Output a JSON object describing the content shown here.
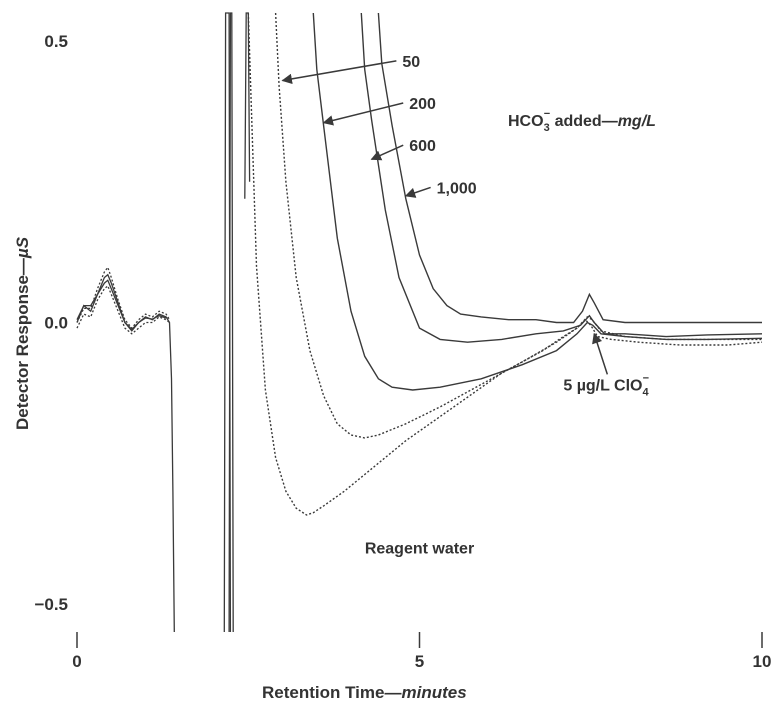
{
  "chart_data": {
    "type": "line",
    "title": "",
    "xlabel_prefix": "Retention Time—",
    "xlabel_unit": "minutes",
    "ylabel_prefix": "Detector Response—",
    "ylabel_unit": "µS",
    "xlim": [
      0,
      10
    ],
    "ylim": [
      -0.55,
      0.55
    ],
    "xticks": [
      {
        "value": 0,
        "label": "0"
      },
      {
        "value": 5,
        "label": "5"
      },
      {
        "value": 10,
        "label": "10"
      }
    ],
    "yticks": [
      {
        "value": 0.5,
        "label": "0.5"
      },
      {
        "value": 0.0,
        "label": "0.0"
      },
      {
        "value": -0.5,
        "label": "−0.5"
      }
    ],
    "grid": false,
    "line_color": "#3a3a3a",
    "series": [
      {
        "name": "Reagent water",
        "dash": "2,2",
        "x": [
          2.5,
          2.62,
          2.75,
          2.9,
          3.05,
          3.2,
          3.35,
          3.45,
          3.6,
          3.9,
          4.3,
          4.8,
          5.5,
          6.2,
          6.8,
          7.1,
          7.3,
          7.42,
          7.5,
          7.6,
          7.8,
          8.2,
          8.8,
          9.5,
          10.0
        ],
        "y": [
          0.55,
          0.1,
          -0.12,
          -0.24,
          -0.3,
          -0.33,
          -0.342,
          -0.338,
          -0.326,
          -0.3,
          -0.26,
          -0.21,
          -0.15,
          -0.09,
          -0.05,
          -0.025,
          -0.01,
          0.005,
          -0.005,
          -0.025,
          -0.03,
          -0.035,
          -0.04,
          -0.04,
          -0.035
        ]
      },
      {
        "name": "50",
        "dash": "2,2",
        "x": [
          2.9,
          2.95,
          3.05,
          3.2,
          3.4,
          3.6,
          3.8,
          4.0,
          4.2,
          4.4,
          4.8,
          5.3,
          5.9,
          6.5,
          7.0,
          7.3,
          7.45,
          7.52,
          7.65,
          8.0,
          8.6,
          9.2,
          10.0
        ],
        "y": [
          0.55,
          0.42,
          0.25,
          0.08,
          -0.05,
          -0.13,
          -0.18,
          -0.2,
          -0.205,
          -0.2,
          -0.18,
          -0.15,
          -0.11,
          -0.07,
          -0.035,
          -0.01,
          0.01,
          0.005,
          -0.015,
          -0.025,
          -0.03,
          -0.03,
          -0.03
        ]
      },
      {
        "name": "200",
        "dash": "",
        "x": [
          3.45,
          3.5,
          3.6,
          3.8,
          4.0,
          4.2,
          4.4,
          4.6,
          4.9,
          5.3,
          5.9,
          6.5,
          7.0,
          7.3,
          7.45,
          7.53,
          7.65,
          8.0,
          8.6,
          9.2,
          10.0
        ],
        "y": [
          0.55,
          0.45,
          0.35,
          0.15,
          0.02,
          -0.06,
          -0.1,
          -0.115,
          -0.12,
          -0.115,
          -0.1,
          -0.075,
          -0.05,
          -0.02,
          0.0,
          -0.005,
          -0.02,
          -0.025,
          -0.03,
          -0.03,
          -0.028
        ]
      },
      {
        "name": "600",
        "dash": "",
        "x": [
          4.15,
          4.2,
          4.3,
          4.5,
          4.7,
          5.0,
          5.3,
          5.7,
          6.2,
          6.7,
          7.1,
          7.35,
          7.48,
          7.55,
          7.7,
          8.0,
          8.6,
          9.2,
          10.0
        ],
        "y": [
          0.55,
          0.45,
          0.36,
          0.2,
          0.08,
          -0.01,
          -0.03,
          -0.035,
          -0.03,
          -0.02,
          -0.015,
          -0.005,
          0.012,
          0.0,
          -0.02,
          -0.02,
          -0.025,
          -0.022,
          -0.02
        ]
      },
      {
        "name": "1,000",
        "dash": "",
        "x": [
          4.4,
          4.45,
          4.6,
          4.8,
          5.0,
          5.2,
          5.4,
          5.6,
          5.9,
          6.3,
          6.7,
          7.0,
          7.25,
          7.38,
          7.48,
          7.55,
          7.68,
          8.0,
          8.6,
          9.3,
          10.0
        ],
        "y": [
          0.55,
          0.46,
          0.35,
          0.22,
          0.12,
          0.06,
          0.03,
          0.015,
          0.01,
          0.005,
          0.005,
          0.0,
          0.0,
          0.02,
          0.05,
          0.035,
          0.005,
          0.0,
          0.0,
          0.0,
          0.0
        ]
      }
    ],
    "early_traces": [
      {
        "dash": "",
        "x": [
          0,
          0.1,
          0.2,
          0.3,
          0.4,
          0.45,
          0.5,
          0.6,
          0.7,
          0.8,
          0.9,
          1.0,
          1.1,
          1.2,
          1.3,
          1.35,
          1.38,
          1.4,
          1.42
        ],
        "y": [
          0.0,
          0.03,
          0.02,
          0.05,
          0.07,
          0.075,
          0.06,
          0.03,
          0.0,
          -0.015,
          0.0,
          0.01,
          0.005,
          0.015,
          0.01,
          0.0,
          -0.1,
          -0.3,
          -0.55
        ]
      },
      {
        "dash": "2,2",
        "x": [
          0,
          0.1,
          0.2,
          0.3,
          0.4,
          0.45,
          0.5,
          0.6,
          0.7,
          0.8,
          0.9,
          1.0,
          1.1,
          1.2,
          1.3,
          1.35
        ],
        "y": [
          0.0,
          0.025,
          0.025,
          0.06,
          0.09,
          0.098,
          0.08,
          0.04,
          0.005,
          -0.01,
          0.005,
          0.015,
          0.01,
          0.02,
          0.015,
          0.005
        ]
      },
      {
        "dash": "2,2",
        "x": [
          0,
          0.1,
          0.2,
          0.3,
          0.4,
          0.45,
          0.5,
          0.6,
          0.7,
          0.8,
          0.9,
          1.0,
          1.1,
          1.2,
          1.3,
          1.35
        ],
        "y": [
          -0.01,
          0.015,
          0.01,
          0.04,
          0.06,
          0.065,
          0.05,
          0.02,
          -0.01,
          -0.02,
          -0.01,
          0.0,
          0.0,
          0.01,
          0.005,
          0.0
        ]
      },
      {
        "dash": "",
        "x": [
          0,
          0.1,
          0.2,
          0.3,
          0.4,
          0.45,
          0.5,
          0.6,
          0.7,
          0.8,
          0.9,
          1.0,
          1.1,
          1.2,
          1.3
        ],
        "y": [
          0.005,
          0.03,
          0.03,
          0.05,
          0.08,
          0.085,
          0.07,
          0.035,
          0.0,
          -0.012,
          0.0,
          0.008,
          0.006,
          0.012,
          0.008
        ]
      }
    ],
    "solvent_peaks": [
      {
        "x": [
          2.15,
          2.17,
          2.2,
          2.22,
          2.24
        ],
        "y": [
          -0.55,
          0.55,
          0.55,
          0.55,
          -0.55
        ]
      },
      {
        "x": [
          2.22,
          2.24,
          2.26,
          2.28
        ],
        "y": [
          -0.55,
          0.55,
          0.55,
          -0.55
        ]
      },
      {
        "x": [
          2.45,
          2.47,
          2.5,
          2.52
        ],
        "y": [
          0.22,
          0.55,
          0.55,
          0.25
        ]
      }
    ],
    "annotations": {
      "legend_title_pre": "HCO",
      "legend_title_sub": "3",
      "legend_title_sup": "−",
      "legend_title_mid": " added—",
      "legend_title_unit": "mg/L",
      "labels": [
        {
          "text": "50",
          "x": 4.75,
          "y": 0.465,
          "arrow_to": [
            3.0,
            0.43
          ]
        },
        {
          "text": "200",
          "x": 4.85,
          "y": 0.39,
          "arrow_to": [
            3.6,
            0.355
          ]
        },
        {
          "text": "600",
          "x": 4.85,
          "y": 0.315,
          "arrow_to": [
            4.3,
            0.29
          ]
        },
        {
          "text": "1,000",
          "x": 5.25,
          "y": 0.24,
          "arrow_to": [
            4.8,
            0.225
          ]
        }
      ],
      "reagent_label": "Reagent water",
      "reagent_pos": [
        5.0,
        -0.4
      ],
      "perchlorate_pre": "5 µg/L ClO",
      "perchlorate_sub": "4",
      "perchlorate_sup": "−",
      "perchlorate_pos": [
        7.1,
        -0.11
      ],
      "perchlorate_arrow_to": [
        7.55,
        -0.02
      ]
    }
  }
}
